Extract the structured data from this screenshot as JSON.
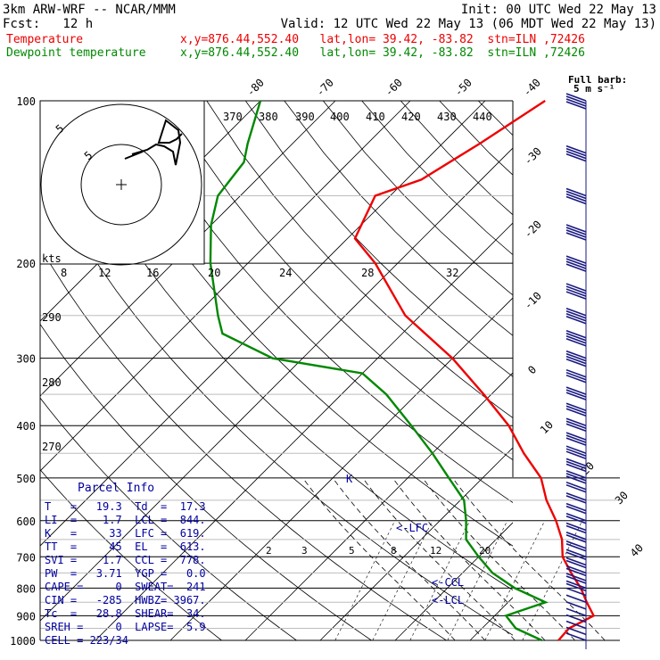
{
  "header": {
    "line1_left": "3km ARW-WRF -- NCAR/MMM",
    "line1_right": "Init: 00 UTC Wed 22 May 13",
    "line2_left": "Fcst:   12 h",
    "line2_right": "Valid: 12 UTC Wed 22 May 13 (06 MDT Wed 22 May 13)",
    "temp_label": "Temperature",
    "dew_label": "Dewpoint temperature",
    "temp_info": "x,y=876.44,552.40   lat,lon= 39.42, -83.82  stn=ILN ,72426",
    "dew_info": "x,y=876.44,552.40   lat,lon= 39.42, -83.82  stn=ILN ,72426"
  },
  "colors": {
    "temperature": "#ee0000",
    "dewpoint": "#008800",
    "parcel": "#0000a0",
    "grid": "#000000",
    "dry_adiabat": "#000000"
  },
  "barb_legend": {
    "line1": "Full barb:",
    "line2": "5 m s⁻¹"
  },
  "parcel_info": {
    "title": "Parcel Info",
    "rows": [
      "T   =   19.3  Td  =  17.3",
      "LI  =    1.7  LCL =  844.",
      "K   =     33  LFC =  619.",
      "TT  =     45  EL  =  613.",
      "SVI =    1.7  CCL =  778.",
      "PW  =   3.71  YGP =   0.0",
      "CAPE =     0  SWEAT=  241",
      "CIN =   -285  HWBZ= 3967.",
      "Tc  =   28.8  SHEAR=  34.",
      "SREH =     0  LAPSE=  5.9",
      "CELL = 223/34"
    ]
  },
  "marker_labels": {
    "lfc": "<-LFC",
    "ccl": "<-CCL",
    "lcl": "<-LCL",
    "parcel_marker": "K"
  },
  "hodograph_labels": {
    "outer": "5",
    "inner": "5",
    "kts": "kts",
    "ticks": [
      "8",
      "12",
      "16",
      "20",
      "24",
      "28",
      "32"
    ]
  },
  "chart_data": {
    "type": "line",
    "title": "",
    "xlabel": "",
    "ylabel": "",
    "y_scale": "log-pressure",
    "ylim": [
      1000,
      100
    ],
    "pressure_ticks": [
      "100",
      "200",
      "300",
      "400",
      "500",
      "600",
      "700",
      "800",
      "900",
      "1000"
    ],
    "isotherm_labels": [
      "-80",
      "-70",
      "-60",
      "-50",
      "-40",
      "-30",
      "-20",
      "-10",
      "0",
      "10",
      "20",
      "30",
      "40"
    ],
    "theta_labels": [
      "370",
      "380",
      "390",
      "400",
      "410",
      "420",
      "430",
      "440"
    ],
    "side_theta_labels": [
      "290",
      "280",
      "270"
    ],
    "mixing_ratio_labels": [
      "2",
      "3",
      "5",
      "8",
      "12",
      "20"
    ],
    "series": [
      {
        "name": "Temperature",
        "points": [
          [
            1000,
            21.8
          ],
          [
            950,
            21.6
          ],
          [
            900,
            23.2
          ],
          [
            850,
            20.5
          ],
          [
            800,
            17.8
          ],
          [
            750,
            14.5
          ],
          [
            700,
            11.2
          ],
          [
            650,
            8.8
          ],
          [
            600,
            5.5
          ],
          [
            550,
            1.5
          ],
          [
            500,
            -2.2
          ],
          [
            450,
            -7.8
          ],
          [
            400,
            -13.5
          ],
          [
            350,
            -21.0
          ],
          [
            300,
            -30.0
          ],
          [
            250,
            -42.0
          ],
          [
            200,
            -53.0
          ],
          [
            180,
            -59.0
          ],
          [
            150,
            -62.0
          ],
          [
            140,
            -58.0
          ],
          [
            120,
            -55.0
          ],
          [
            100,
            -52.0
          ]
        ]
      },
      {
        "name": "Dewpoint temperature",
        "points": [
          [
            1000,
            19.6
          ],
          [
            950,
            14.5
          ],
          [
            900,
            11.5
          ],
          [
            850,
            15.0
          ],
          [
            800,
            9.0
          ],
          [
            750,
            4.0
          ],
          [
            700,
            0.0
          ],
          [
            650,
            -4.0
          ],
          [
            600,
            -6.5
          ],
          [
            550,
            -9.5
          ],
          [
            500,
            -14.5
          ],
          [
            450,
            -20.0
          ],
          [
            400,
            -26.5
          ],
          [
            350,
            -34.0
          ],
          [
            320,
            -40.0
          ],
          [
            300,
            -54.0
          ],
          [
            270,
            -64.0
          ],
          [
            250,
            -67.0
          ],
          [
            200,
            -75.0
          ],
          [
            170,
            -80.0
          ],
          [
            150,
            -83.0
          ],
          [
            130,
            -84.0
          ],
          [
            120,
            -86.0
          ],
          [
            100,
            -90.0
          ]
        ]
      }
    ],
    "wind_barbs_present": true
  }
}
